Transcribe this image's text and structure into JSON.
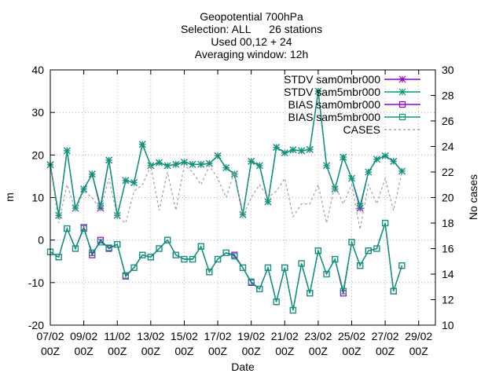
{
  "chart_data": {
    "type": "line",
    "title_lines": [
      "Geopotential 700hPa",
      "Selection: ALL      26 stations",
      "Used 00,12 + 24",
      "Averaging window: 12h"
    ],
    "xlabel": "Date",
    "ylabel": "m",
    "y2label": "No cases",
    "xlim": [
      0,
      46
    ],
    "ylim": [
      -20,
      40
    ],
    "y2lim": [
      10,
      30
    ],
    "grid": true,
    "legend_position": "top-right",
    "x_ticks": [
      {
        "x": 0,
        "line1": "07/02",
        "line2": "00Z"
      },
      {
        "x": 4,
        "line1": "09/02",
        "line2": "00Z"
      },
      {
        "x": 8,
        "line1": "11/02",
        "line2": "00Z"
      },
      {
        "x": 12,
        "line1": "13/02",
        "line2": "00Z"
      },
      {
        "x": 16,
        "line1": "15/02",
        "line2": "00Z"
      },
      {
        "x": 20,
        "line1": "17/02",
        "line2": "00Z"
      },
      {
        "x": 24,
        "line1": "19/02",
        "line2": "00Z"
      },
      {
        "x": 28,
        "line1": "21/02",
        "line2": "00Z"
      },
      {
        "x": 32,
        "line1": "23/02",
        "line2": "00Z"
      },
      {
        "x": 36,
        "line1": "25/02",
        "line2": "00Z"
      },
      {
        "x": 40,
        "line1": "27/02",
        "line2": "00Z"
      },
      {
        "x": 44,
        "line1": "29/02",
        "line2": "00Z"
      }
    ],
    "y_ticks": [
      "-20",
      "-10",
      "0",
      "10",
      "20",
      "30",
      "40"
    ],
    "y2_ticks": [
      "10",
      "12",
      "14",
      "16",
      "18",
      "20",
      "22",
      "24",
      "26",
      "28",
      "30"
    ],
    "series": [
      {
        "name": "STDV sam0mbr000",
        "axis": "y",
        "color": "#9400d3",
        "marker": "star",
        "dash": "",
        "values": [
          17.7,
          5.8,
          21.0,
          7.5,
          12.0,
          15.5,
          7.5,
          18.8,
          5.8,
          14.0,
          13.5,
          22.5,
          17.5,
          18.2,
          17.5,
          17.8,
          18.3,
          17.8,
          17.8,
          18.0,
          19.8,
          17.0,
          15.5,
          6.0,
          18.5,
          17.5,
          9.0,
          21.8,
          20.5,
          21.2,
          21.0,
          21.3,
          35.0,
          17.5,
          12.0,
          19.5,
          14.5,
          7.5,
          16.0,
          19.0,
          19.8,
          18.5,
          16.2
        ]
      },
      {
        "name": "STDV sam5mbr000",
        "axis": "y",
        "color": "#009e73",
        "marker": "star",
        "dash": "",
        "values": [
          17.7,
          5.8,
          21.0,
          7.5,
          12.0,
          15.5,
          8.0,
          18.8,
          5.8,
          14.0,
          13.5,
          22.5,
          17.5,
          18.2,
          17.5,
          17.8,
          18.3,
          17.8,
          17.8,
          18.0,
          19.8,
          17.0,
          15.5,
          6.0,
          18.5,
          17.5,
          9.0,
          21.8,
          20.5,
          21.2,
          21.0,
          21.3,
          35.0,
          17.5,
          12.0,
          19.5,
          14.5,
          8.0,
          16.0,
          19.0,
          19.8,
          18.5,
          16.2
        ]
      },
      {
        "name": "BIAS sam0mbr000",
        "axis": "y",
        "color": "#9400d3",
        "marker": "square",
        "dash": "",
        "values": [
          -2.8,
          -4.0,
          2.7,
          -2.0,
          3.0,
          -3.5,
          0.0,
          -2.0,
          -1.0,
          -8.5,
          -6.5,
          -3.5,
          -4.0,
          -2.0,
          0.0,
          -3.5,
          -4.5,
          -4.5,
          -1.5,
          -7.5,
          -4.5,
          -3.0,
          -3.5,
          -6.5,
          -10.0,
          -11.5,
          -6.5,
          -14.5,
          -6.5,
          -16.5,
          -5.5,
          -12.5,
          -2.5,
          -8.0,
          -4.5,
          -12.5,
          -0.5,
          -6.0,
          -2.5,
          -2.0,
          4.0,
          -12.0,
          -6.0
        ]
      },
      {
        "name": "BIAS sam5mbr000",
        "axis": "y",
        "color": "#009e73",
        "marker": "square",
        "dash": "",
        "values": [
          -2.8,
          -4.0,
          2.7,
          -2.0,
          2.7,
          -3.0,
          -0.5,
          -1.8,
          -1.0,
          -8.3,
          -6.5,
          -3.5,
          -4.0,
          -2.0,
          0.0,
          -3.5,
          -4.5,
          -4.5,
          -1.5,
          -7.5,
          -4.5,
          -3.0,
          -3.8,
          -6.5,
          -9.8,
          -11.5,
          -6.5,
          -14.5,
          -6.5,
          -16.5,
          -5.5,
          -12.5,
          -2.5,
          -8.0,
          -4.5,
          -12.0,
          -0.5,
          -6.0,
          -2.5,
          -2.0,
          4.0,
          -12.0,
          -6.0
        ]
      },
      {
        "name": "CASES",
        "axis": "y2",
        "color": "#a0a0a0",
        "marker": "none",
        "dash": "3,3",
        "values": [
          22.5,
          18.0,
          21.0,
          19.0,
          20.5,
          20.0,
          19.0,
          21.5,
          18.5,
          18.0,
          20.5,
          21.0,
          22.5,
          19.0,
          22.0,
          19.0,
          22.5,
          22.0,
          21.0,
          22.5,
          21.5,
          20.0,
          22.0,
          18.5,
          20.0,
          21.0,
          20.0,
          20.5,
          21.5,
          18.5,
          19.5,
          19.5,
          21.0,
          18.0,
          21.0,
          19.5,
          21.0,
          17.5,
          21.0,
          19.5,
          21.5,
          19.0,
          22.0
        ]
      }
    ]
  }
}
